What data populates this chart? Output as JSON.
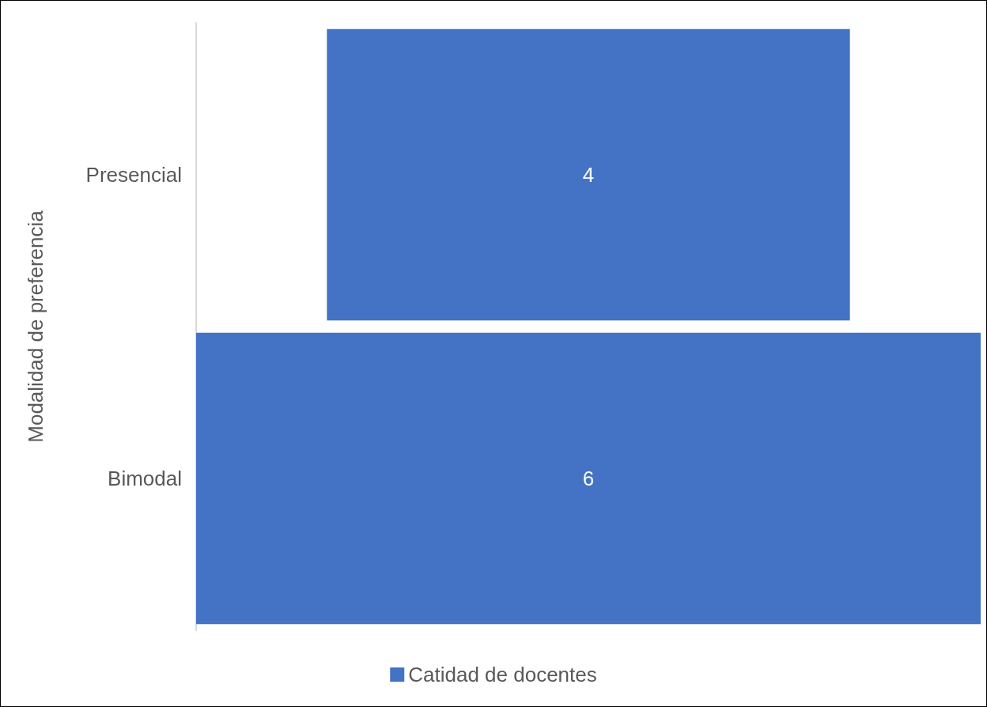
{
  "chart_data": {
    "type": "other",
    "ylabel": "Modalidad de preferencia",
    "categories": [
      "Presencial",
      "Bimodal"
    ],
    "series": [
      {
        "name": "Catidad de docentes",
        "color": "#4472c4",
        "values": [
          4,
          6
        ]
      }
    ],
    "data_labels": true,
    "legend": "bottom"
  }
}
